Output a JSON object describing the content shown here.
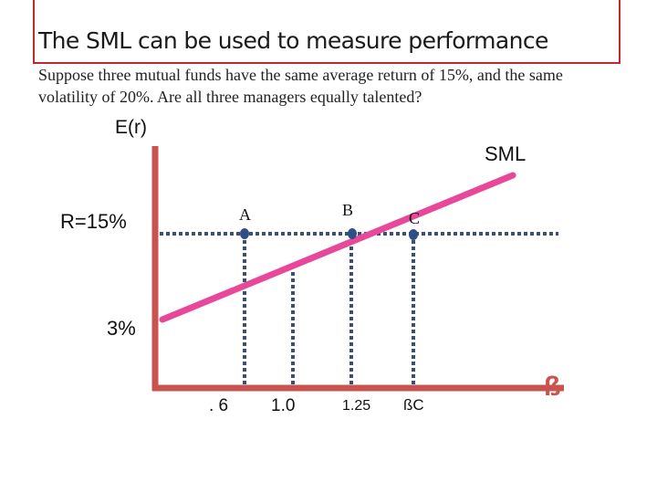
{
  "slide": {
    "title": "The SML can be used to measure performance",
    "subtitle": "Suppose three mutual funds have the same average return of 15%, and the same volatility of 20%. Are all three managers equally talented?"
  },
  "diagram": {
    "y_axis_label": "E(r)",
    "x_axis_symbol": "ß",
    "line_label": "SML",
    "return_label": "R=15%",
    "intercept_label": "3%",
    "points": [
      {
        "name": "A",
        "beta_label": ". 6"
      },
      {
        "name": "B",
        "beta_label": "1.25"
      },
      {
        "name": "C",
        "beta_label": "ßC"
      }
    ],
    "extra_tick_label": "1.0",
    "colors": {
      "axes": "#c9544f",
      "sml": "#e8489a",
      "dotted": "#3b5078",
      "point": "#2f4f86",
      "frame": "#c0282d"
    }
  }
}
